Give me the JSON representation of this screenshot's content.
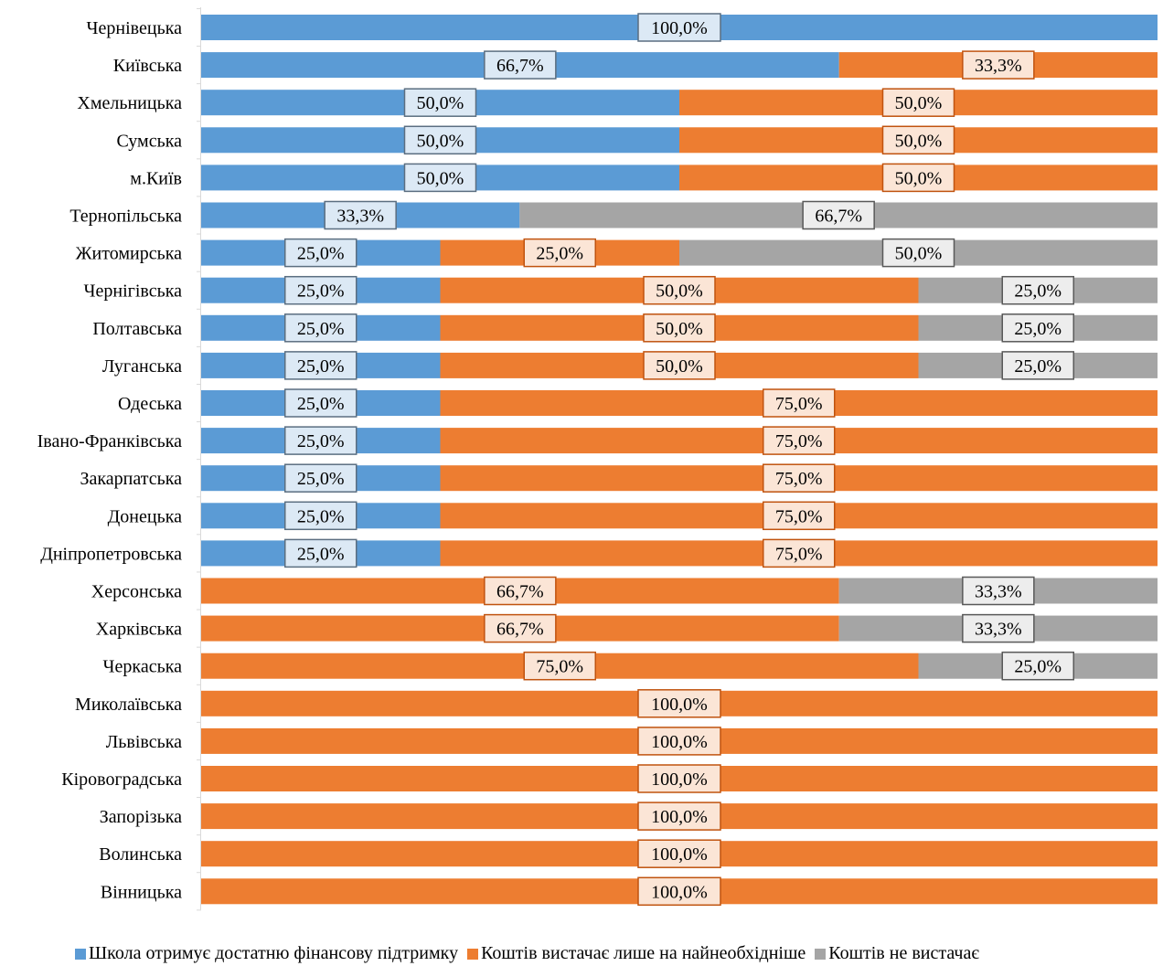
{
  "chart_data": {
    "type": "bar",
    "orientation": "horizontal",
    "stacked": "percent",
    "categories": [
      "Чернівецька",
      "Київська",
      "Хмельницька",
      "Сумська",
      "м.Київ",
      "Тернопільська",
      "Житомирська",
      "Чернігівська",
      "Полтавська",
      "Луганська",
      "Одеська",
      "Івано-Франківська",
      "Закарпатська",
      "Донецька",
      "Дніпропетровська",
      "Херсонська",
      "Харківська",
      "Черкаська",
      "Миколаївська",
      "Львівська",
      "Кіровоградська",
      "Запорізька",
      "Волинська",
      "Вінницька"
    ],
    "series": [
      {
        "name": "Школа отримує достатню фінансову підтримку",
        "color": "#5b9bd5",
        "label_bg": "#dce9f5",
        "label_border": "#5b6e80",
        "values": [
          100.0,
          66.7,
          50.0,
          50.0,
          50.0,
          33.3,
          25.0,
          25.0,
          25.0,
          25.0,
          25.0,
          25.0,
          25.0,
          25.0,
          25.0,
          0,
          0,
          0,
          0,
          0,
          0,
          0,
          0,
          0
        ],
        "labels": [
          "100,0%",
          "66,7%",
          "50,0%",
          "50,0%",
          "50,0%",
          "33,3%",
          "25,0%",
          "25,0%",
          "25,0%",
          "25,0%",
          "25,0%",
          "25,0%",
          "25,0%",
          "25,0%",
          "25,0%",
          "",
          "",
          "",
          "",
          "",
          "",
          "",
          "",
          ""
        ]
      },
      {
        "name": "Коштів вистачає лише на найнеобхідніше",
        "color": "#ed7d31",
        "label_bg": "#fbe5d6",
        "label_border": "#c0530f",
        "values": [
          0,
          33.3,
          50.0,
          50.0,
          50.0,
          0,
          25.0,
          50.0,
          50.0,
          50.0,
          75.0,
          75.0,
          75.0,
          75.0,
          75.0,
          66.7,
          66.7,
          75.0,
          100.0,
          100.0,
          100.0,
          100.0,
          100.0,
          100.0
        ],
        "labels": [
          "",
          "33,3%",
          "50,0%",
          "50,0%",
          "50,0%",
          "",
          "25,0%",
          "50,0%",
          "50,0%",
          "50,0%",
          "75,0%",
          "75,0%",
          "75,0%",
          "75,0%",
          "75,0%",
          "66,7%",
          "66,7%",
          "75,0%",
          "100,0%",
          "100,0%",
          "100,0%",
          "100,0%",
          "100,0%",
          "100,0%"
        ]
      },
      {
        "name": "Коштів не вистачає",
        "color": "#a5a5a5",
        "label_bg": "#ededed",
        "label_border": "#595959",
        "values": [
          0,
          0,
          0,
          0,
          0,
          66.7,
          50.0,
          25.0,
          25.0,
          25.0,
          0,
          0,
          0,
          0,
          0,
          33.3,
          33.3,
          25.0,
          0,
          0,
          0,
          0,
          0,
          0
        ],
        "labels": [
          "",
          "",
          "",
          "",
          "",
          "66,7%",
          "50,0%",
          "25,0%",
          "25,0%",
          "25,0%",
          "",
          "",
          "",
          "",
          "",
          "33,3%",
          "33,3%",
          "25,0%",
          "",
          "",
          "",
          "",
          "",
          ""
        ]
      }
    ],
    "xlim": [
      0,
      100
    ],
    "grid": false,
    "legend_position": "bottom"
  }
}
